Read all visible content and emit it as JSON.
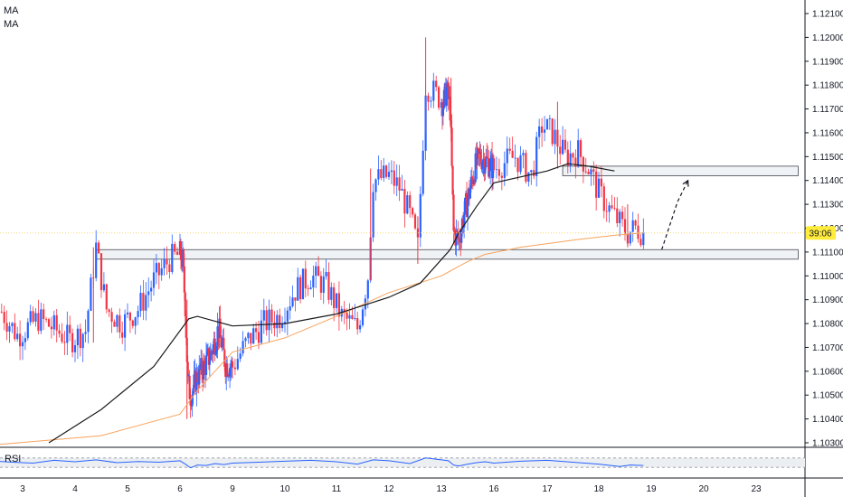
{
  "legend": {
    "ma1": "MA",
    "ma2": "MA"
  },
  "rsi_label": "RSI",
  "price_tag": "39:06",
  "colors": {
    "up": "#2962ff",
    "down": "#f23645",
    "ma_long": "#1a1a1a",
    "ma_short": "#f7a35c",
    "rsi": "#2962ff",
    "zone_fill": "#f0f3f5",
    "zone_stroke": "#434651",
    "price_tag_bg": "#ffeb3b"
  },
  "chart_data": [
    {
      "type": "candlestick",
      "ylim": [
        1.1029,
        1.1214
      ],
      "y_ticks": [
        "1.12100",
        "1.12000",
        "1.11900",
        "1.11800",
        "1.11700",
        "1.11600",
        "1.11500",
        "1.11400",
        "1.11300",
        "1.11200",
        "1.11100",
        "1.11000",
        "1.10900",
        "1.10800",
        "1.10700",
        "1.10600",
        "1.10500",
        "1.10400",
        "1.10300"
      ],
      "x_labels": [
        {
          "label": "3",
          "day": 3
        },
        {
          "label": "4",
          "day": 4
        },
        {
          "label": "5",
          "day": 5
        },
        {
          "label": "6",
          "day": 6
        },
        {
          "label": "9",
          "day": 9
        },
        {
          "label": "10",
          "day": 10
        },
        {
          "label": "11",
          "day": 11
        },
        {
          "label": "12",
          "day": 12
        },
        {
          "label": "13",
          "day": 13
        },
        {
          "label": "16",
          "day": 16
        },
        {
          "label": "17",
          "day": 17
        },
        {
          "label": "18",
          "day": 18
        },
        {
          "label": "19",
          "day": 19
        },
        {
          "label": "20",
          "day": 20
        },
        {
          "label": "23",
          "day": 23
        }
      ],
      "price_path": [
        [
          2.6,
          1.1085
        ],
        [
          2.9,
          1.1075
        ],
        [
          3.3,
          1.1082
        ],
        [
          3.6,
          1.1078
        ],
        [
          3.9,
          1.1073
        ],
        [
          4.2,
          1.1077
        ],
        [
          4.4,
          1.1112
        ],
        [
          4.6,
          1.1086
        ],
        [
          4.9,
          1.108
        ],
        [
          5.2,
          1.1086
        ],
        [
          5.5,
          1.1098
        ],
        [
          5.8,
          1.1107
        ],
        [
          6.0,
          1.1109
        ],
        [
          6.15,
          1.1106
        ],
        [
          6.3,
          1.1088
        ],
        [
          6.45,
          1.1055
        ],
        [
          6.6,
          1.105
        ],
        [
          7.0,
          1.1058
        ],
        [
          7.4,
          1.1062
        ],
        [
          7.8,
          1.1068
        ],
        [
          8.2,
          1.1078
        ],
        [
          8.6,
          1.1063
        ],
        [
          9.0,
          1.1062
        ],
        [
          9.3,
          1.1073
        ],
        [
          9.6,
          1.108
        ],
        [
          9.9,
          1.1083
        ],
        [
          10.2,
          1.1094
        ],
        [
          10.5,
          1.11
        ],
        [
          10.8,
          1.1096
        ],
        [
          11.1,
          1.1083
        ],
        [
          11.4,
          1.1078
        ],
        [
          11.6,
          1.11
        ],
        [
          11.7,
          1.114
        ],
        [
          12.0,
          1.1142
        ],
        [
          12.2,
          1.1137
        ],
        [
          12.4,
          1.1125
        ],
        [
          12.55,
          1.1112
        ],
        [
          12.7,
          1.118
        ],
        [
          12.9,
          1.1176
        ],
        [
          13.1,
          1.1172
        ],
        [
          13.3,
          1.1178
        ],
        [
          13.5,
          1.117
        ],
        [
          13.7,
          1.1118
        ],
        [
          14.0,
          1.1115
        ],
        [
          14.3,
          1.1126
        ],
        [
          14.6,
          1.1135
        ],
        [
          14.9,
          1.1145
        ],
        [
          15.2,
          1.115
        ],
        [
          15.6,
          1.1148
        ],
        [
          16.0,
          1.1145
        ],
        [
          16.4,
          1.115
        ],
        [
          16.7,
          1.1142
        ],
        [
          16.9,
          1.1163
        ],
        [
          17.1,
          1.116
        ],
        [
          17.35,
          1.115
        ],
        [
          17.6,
          1.1152
        ],
        [
          17.8,
          1.1145
        ],
        [
          18.0,
          1.1135
        ],
        [
          18.2,
          1.1128
        ],
        [
          18.4,
          1.1122
        ],
        [
          18.55,
          1.1118
        ],
        [
          18.7,
          1.112
        ],
        [
          18.85,
          1.1118
        ]
      ],
      "ma_long": [
        [
          3.5,
          1.103
        ],
        [
          4.5,
          1.1044
        ],
        [
          5.5,
          1.1062
        ],
        [
          6.5,
          1.1082
        ],
        [
          7.0,
          1.1083
        ],
        [
          8.0,
          1.1081
        ],
        [
          9.0,
          1.1079
        ],
        [
          10.0,
          1.108
        ],
        [
          11.0,
          1.1084
        ],
        [
          12.0,
          1.1091
        ],
        [
          12.6,
          1.1097
        ],
        [
          13.5,
          1.1111
        ],
        [
          14.0,
          1.1118
        ],
        [
          15.0,
          1.1129
        ],
        [
          16.0,
          1.1139
        ],
        [
          17.0,
          1.1144
        ],
        [
          17.4,
          1.1147
        ],
        [
          17.8,
          1.1146
        ],
        [
          18.3,
          1.1144
        ]
      ],
      "ma_short": [
        [
          2.4,
          1.1029
        ],
        [
          4.5,
          1.1033
        ],
        [
          6.0,
          1.1042
        ],
        [
          7.0,
          1.1052
        ],
        [
          8.0,
          1.106
        ],
        [
          9.0,
          1.1068
        ],
        [
          10.0,
          1.1074
        ],
        [
          11.0,
          1.1083
        ],
        [
          12.0,
          1.1093
        ],
        [
          13.0,
          1.11
        ],
        [
          13.5,
          1.1102
        ],
        [
          14.5,
          1.1106
        ],
        [
          15.5,
          1.1109
        ],
        [
          16.5,
          1.1112
        ],
        [
          17.5,
          1.1115
        ],
        [
          18.3,
          1.1117
        ],
        [
          18.85,
          1.1118
        ]
      ],
      "zones": [
        {
          "x_start": 17.3,
          "x_end": 23.8,
          "y_top": 1.1146,
          "y_bottom": 1.1142
        },
        {
          "x_start": 4.4,
          "x_end": 23.8,
          "y_top": 1.1111,
          "y_bottom": 1.1107
        }
      ],
      "projection": [
        [
          19.2,
          1.1111
        ],
        [
          19.5,
          1.1131
        ],
        [
          19.7,
          1.114
        ]
      ],
      "current_price": 1.1118,
      "rsi": {
        "ylim": [
          0,
          100
        ],
        "band": [
          30,
          70
        ],
        "values": [
          [
            2.4,
            58
          ],
          [
            2.8,
            52
          ],
          [
            3.2,
            48
          ],
          [
            3.6,
            60
          ],
          [
            4.0,
            54
          ],
          [
            4.4,
            62
          ],
          [
            4.8,
            50
          ],
          [
            5.2,
            55
          ],
          [
            5.6,
            52
          ],
          [
            6.0,
            58
          ],
          [
            6.3,
            44
          ],
          [
            6.6,
            28
          ],
          [
            7.0,
            40
          ],
          [
            7.5,
            38
          ],
          [
            8.0,
            46
          ],
          [
            8.5,
            42
          ],
          [
            9.0,
            48
          ],
          [
            9.5,
            52
          ],
          [
            10.0,
            56
          ],
          [
            10.5,
            60
          ],
          [
            11.0,
            54
          ],
          [
            11.4,
            44
          ],
          [
            11.7,
            62
          ],
          [
            12.0,
            58
          ],
          [
            12.4,
            46
          ],
          [
            12.7,
            70
          ],
          [
            13.0,
            62
          ],
          [
            13.4,
            58
          ],
          [
            13.7,
            40
          ],
          [
            14.0,
            36
          ],
          [
            14.5,
            44
          ],
          [
            15.0,
            50
          ],
          [
            15.5,
            54
          ],
          [
            16.0,
            48
          ],
          [
            16.5,
            56
          ],
          [
            17.0,
            60
          ],
          [
            17.5,
            52
          ],
          [
            18.0,
            44
          ],
          [
            18.4,
            34
          ],
          [
            18.6,
            40
          ],
          [
            18.85,
            38
          ]
        ]
      }
    }
  ]
}
